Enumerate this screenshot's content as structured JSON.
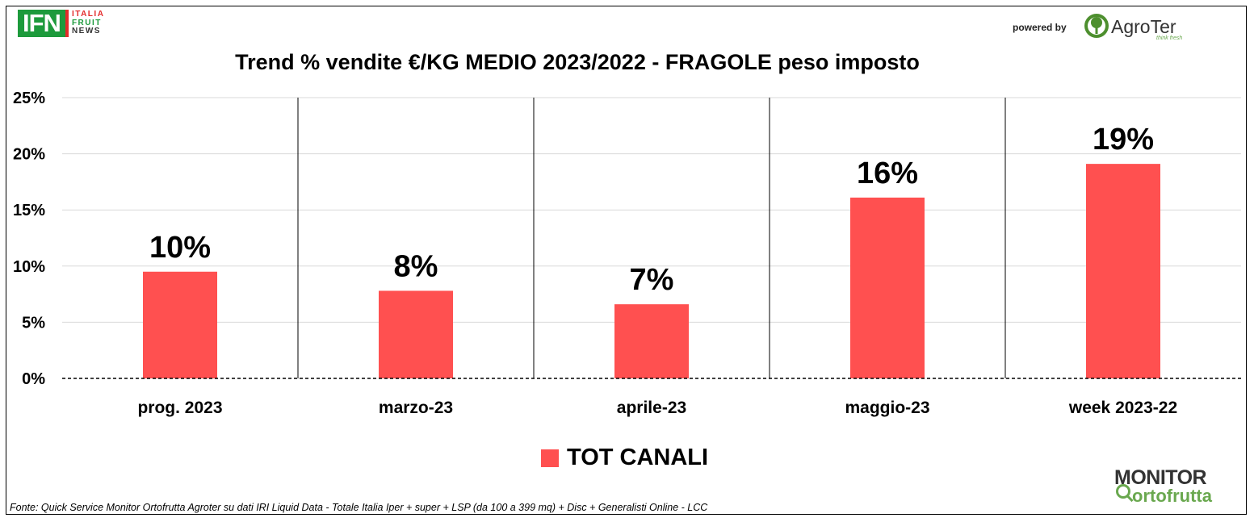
{
  "logo_ifn": {
    "abbr": "IFN",
    "line1": "ITALIA",
    "line2": "FRUIT",
    "line3": "NEWS"
  },
  "powered_by": "powered by",
  "logo_agroter": {
    "name": "AgroTer",
    "tagline": "think fresh"
  },
  "logo_monitor": {
    "line1": "MONITOR",
    "line2": "ortofrutta"
  },
  "chart_data": {
    "type": "bar",
    "title": "Trend % vendite €/KG MEDIO 2023/2022 - FRAGOLE peso imposto",
    "categories": [
      "prog. 2023",
      "marzo-23",
      "aprile-23",
      "maggio-23",
      "week 2023-22"
    ],
    "series": [
      {
        "name": "TOT CANALI",
        "values": [
          9.5,
          7.8,
          6.6,
          16.1,
          19.1
        ],
        "labels": [
          "10%",
          "8%",
          "7%",
          "16%",
          "19%"
        ],
        "color": "#ff5050"
      }
    ],
    "ylim": [
      0,
      25
    ],
    "yticks": [
      "0%",
      "5%",
      "10%",
      "15%",
      "20%",
      "25%"
    ],
    "ytick_values": [
      0,
      5,
      10,
      15,
      20,
      25
    ],
    "grid": true,
    "legend": "bottom"
  },
  "source_note": "Fonte: Quick Service Monitor Ortofrutta Agroter su dati IRI Liquid Data - Totale Italia Iper + super + LSP (da 100 a 399 mq) + Disc + Generalisti Online - LCC"
}
